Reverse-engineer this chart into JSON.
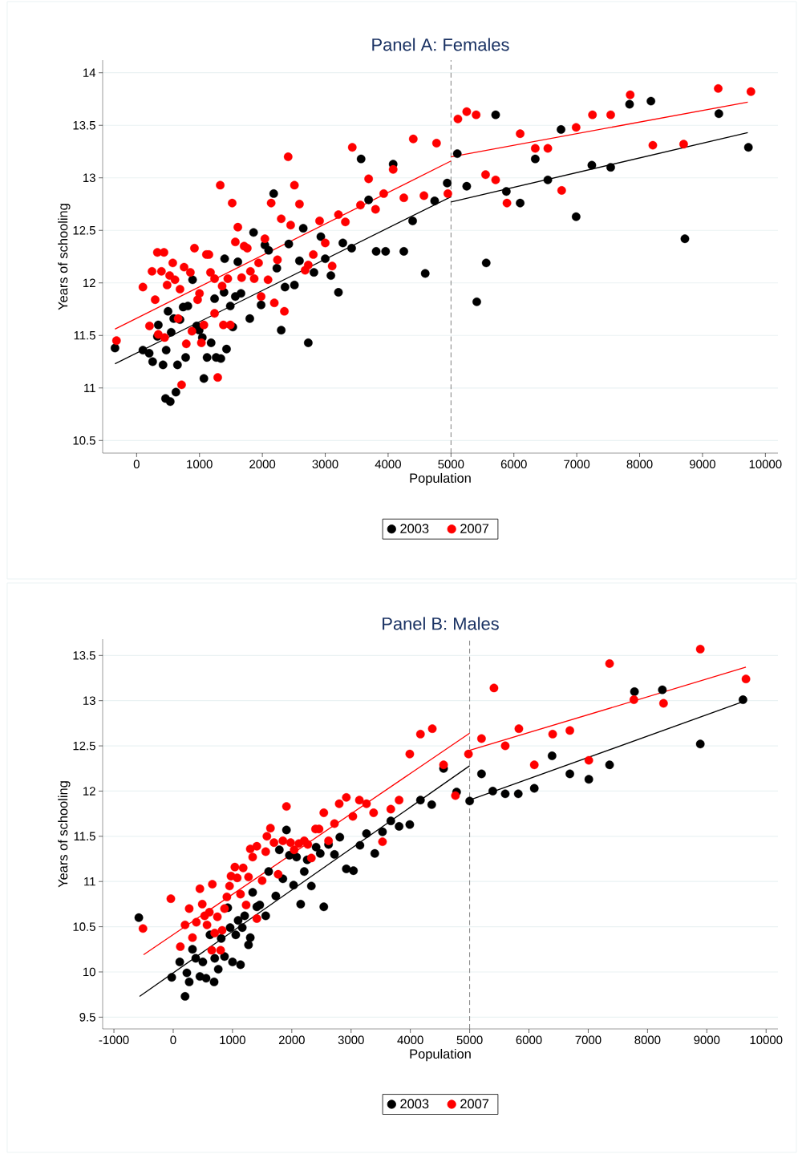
{
  "chart_data": [
    {
      "type": "scatter",
      "title": "Panel A: Females",
      "xlabel": "Population",
      "ylabel": "Years of schooling",
      "xlim": [
        -540,
        10200
      ],
      "ylim": [
        10.38,
        14.12
      ],
      "xticks": [
        0,
        1000,
        2000,
        3000,
        4000,
        5000,
        6000,
        7000,
        8000,
        9000,
        10000
      ],
      "yticks": [
        10.5,
        11,
        11.5,
        12,
        12.5,
        13,
        13.5,
        14
      ],
      "grid": "y",
      "legend": "bottom",
      "marker": "circle",
      "ref_lines": [
        {
          "axis": "x",
          "value": 5000,
          "color": "#808080",
          "line_style": "dashed"
        }
      ],
      "series": [
        {
          "name": "2003",
          "color": "#000000",
          "x": [
            -344,
            100,
            200,
            255,
            330,
            345,
            420,
            470,
            460,
            535,
            500,
            550,
            590,
            625,
            650,
            690,
            740,
            780,
            815,
            890,
            955,
            995,
            1045,
            1070,
            1120,
            1185,
            1240,
            1265,
            1340,
            1390,
            1430,
            1400,
            1490,
            1530,
            1570,
            1610,
            1660,
            1800,
            1860,
            1980,
            2040,
            2100,
            2180,
            2230,
            2300,
            2360,
            2420,
            2510,
            2590,
            2650,
            2730,
            2820,
            2930,
            3000,
            3090,
            3210,
            3280,
            3420,
            3570,
            3690,
            3810,
            3960,
            4080,
            4250,
            4390,
            4590,
            4740,
            4940,
            5100,
            5710,
            5250,
            5880,
            6100,
            6340,
            6750,
            6540,
            6990,
            7240,
            7540,
            7840,
            8180,
            9260,
            9730,
            8720,
            5560,
            5410
          ],
          "values": [
            11.38,
            11.36,
            11.33,
            11.25,
            11.49,
            11.6,
            11.22,
            11.36,
            10.9,
            10.87,
            11.73,
            11.53,
            11.66,
            10.96,
            11.22,
            11.65,
            11.77,
            11.29,
            11.78,
            12.03,
            11.59,
            11.55,
            11.48,
            11.09,
            11.29,
            11.43,
            11.85,
            11.29,
            11.28,
            11.91,
            11.37,
            12.23,
            11.78,
            11.58,
            11.87,
            12.2,
            11.9,
            11.66,
            12.48,
            11.79,
            12.36,
            12.31,
            12.85,
            12.14,
            11.55,
            11.96,
            12.37,
            11.98,
            12.21,
            12.52,
            11.43,
            12.1,
            12.44,
            12.23,
            12.07,
            11.91,
            12.38,
            12.33,
            13.18,
            12.79,
            12.3,
            12.3,
            13.13,
            12.3,
            12.59,
            12.09,
            12.78,
            12.95,
            13.23,
            13.6,
            12.92,
            12.87,
            12.76,
            13.18,
            13.46,
            12.98,
            12.63,
            13.12,
            13.1,
            13.7,
            13.73,
            13.61,
            13.29,
            12.42,
            12.19,
            11.82
          ]
        },
        {
          "name": "2007",
          "color": "#ff0000",
          "x": [
            -320,
            100,
            205,
            295,
            245,
            330,
            435,
            395,
            345,
            445,
            485,
            525,
            575,
            610,
            660,
            690,
            715,
            755,
            790,
            855,
            880,
            920,
            970,
            1000,
            1030,
            1070,
            1110,
            1150,
            1175,
            1240,
            1290,
            1240,
            1330,
            1360,
            1380,
            1450,
            1490,
            1520,
            1610,
            1570,
            1670,
            1710,
            1760,
            1810,
            1870,
            1940,
            1980,
            2040,
            2090,
            2140,
            2190,
            2240,
            2300,
            2350,
            2410,
            2450,
            2510,
            2590,
            2680,
            2730,
            2810,
            2910,
            3000,
            3110,
            3210,
            3320,
            3430,
            3560,
            3690,
            3800,
            3930,
            4080,
            4250,
            4400,
            4570,
            4770,
            4950,
            5110,
            5250,
            5400,
            5550,
            5710,
            5890,
            6100,
            6340,
            6540,
            6760,
            6990,
            7250,
            7540,
            7850,
            8210,
            8700,
            9250,
            9770
          ],
          "values": [
            11.45,
            11.96,
            11.59,
            11.84,
            12.11,
            12.29,
            12.29,
            12.11,
            11.51,
            11.48,
            11.98,
            12.07,
            12.19,
            12.03,
            11.66,
            11.94,
            11.03,
            12.15,
            11.42,
            12.1,
            11.54,
            12.33,
            11.84,
            11.9,
            11.43,
            11.6,
            12.27,
            12.27,
            12.1,
            12.04,
            11.1,
            11.71,
            12.93,
            11.97,
            11.6,
            12.04,
            11.6,
            12.76,
            12.53,
            12.39,
            12.05,
            12.35,
            12.33,
            12.11,
            12.04,
            12.19,
            11.87,
            12.42,
            12.03,
            12.76,
            11.81,
            12.22,
            12.61,
            11.73,
            13.2,
            12.55,
            12.93,
            12.75,
            12.12,
            12.17,
            12.27,
            12.59,
            12.38,
            12.16,
            12.65,
            12.58,
            13.29,
            12.74,
            12.99,
            12.7,
            12.85,
            13.08,
            12.81,
            13.37,
            12.83,
            13.33,
            12.85,
            13.56,
            13.63,
            13.6,
            13.03,
            12.98,
            12.76,
            13.42,
            13.28,
            13.28,
            12.88,
            13.48,
            13.6,
            13.6,
            13.79,
            13.31,
            13.32,
            13.85,
            13.82
          ]
        },
        {
          "type": "line",
          "marker": "none",
          "color": "#000000",
          "x": [
            -344,
            5000
          ],
          "values": [
            11.23,
            12.82
          ]
        },
        {
          "type": "line",
          "marker": "none",
          "color": "#000000",
          "x": [
            5000,
            9720
          ],
          "values": [
            12.77,
            13.43
          ]
        },
        {
          "type": "line",
          "marker": "none",
          "color": "#ff0000",
          "x": [
            -344,
            5000
          ],
          "values": [
            11.56,
            13.16
          ]
        },
        {
          "type": "line",
          "marker": "none",
          "color": "#ff0000",
          "x": [
            5000,
            9720
          ],
          "values": [
            13.2,
            13.72
          ]
        }
      ]
    },
    {
      "type": "scatter",
      "title": "Panel B: Males",
      "xlabel": "Population",
      "ylabel": "Years of schooling",
      "xlim": [
        -1190,
        10200
      ],
      "ylim": [
        9.37,
        13.68
      ],
      "xticks": [
        -1000,
        0,
        1000,
        2000,
        3000,
        4000,
        5000,
        6000,
        7000,
        8000,
        9000,
        10000
      ],
      "yticks": [
        9.5,
        10,
        10.5,
        11,
        11.5,
        12,
        12.5,
        13,
        13.5
      ],
      "grid": "y",
      "legend": "bottom",
      "marker": "circle",
      "ref_lines": [
        {
          "axis": "x",
          "value": 5000,
          "color": "#808080",
          "line_style": "dashed"
        }
      ],
      "series": [
        {
          "name": "2003",
          "color": "#000000",
          "x": [
            -580,
            -25,
            110,
            200,
            230,
            270,
            325,
            380,
            450,
            500,
            555,
            620,
            690,
            700,
            760,
            810,
            865,
            920,
            960,
            1000,
            1055,
            1135,
            1095,
            1165,
            1205,
            1270,
            1300,
            1340,
            1410,
            1460,
            1560,
            1610,
            1730,
            1790,
            1850,
            1910,
            1960,
            2030,
            2080,
            2150,
            2210,
            2260,
            2330,
            2410,
            2480,
            2540,
            2620,
            2720,
            2810,
            2920,
            3040,
            3150,
            3260,
            3400,
            3530,
            3670,
            3810,
            3990,
            4170,
            4360,
            4560,
            4780,
            5000,
            5200,
            5390,
            5600,
            5820,
            6090,
            6390,
            6690,
            7010,
            7360,
            7780,
            8250,
            8890,
            9610
          ],
          "values": [
            10.6,
            9.94,
            10.11,
            9.73,
            9.99,
            9.89,
            10.25,
            10.15,
            9.95,
            10.11,
            9.93,
            10.41,
            9.89,
            10.15,
            10.03,
            10.37,
            10.17,
            10.71,
            10.49,
            10.11,
            10.41,
            10.08,
            10.57,
            10.49,
            10.62,
            10.3,
            10.38,
            10.88,
            10.72,
            10.74,
            10.62,
            11.11,
            10.84,
            11.35,
            11.03,
            11.57,
            11.29,
            10.96,
            11.27,
            10.75,
            11.11,
            11.24,
            10.95,
            11.38,
            11.31,
            10.72,
            11.41,
            11.3,
            11.49,
            11.14,
            11.12,
            11.4,
            11.53,
            11.31,
            11.55,
            11.67,
            11.61,
            11.63,
            11.9,
            11.85,
            12.25,
            11.99,
            11.89,
            12.19,
            12.0,
            11.97,
            11.97,
            12.03,
            12.39,
            12.19,
            12.13,
            12.29,
            13.1,
            13.12,
            12.52,
            13.01
          ]
        },
        {
          "name": "2007",
          "color": "#ff0000",
          "x": [
            -510,
            -40,
            120,
            200,
            270,
            325,
            390,
            450,
            490,
            530,
            570,
            610,
            650,
            660,
            700,
            745,
            800,
            825,
            865,
            905,
            950,
            975,
            1040,
            1080,
            1135,
            1180,
            1230,
            1270,
            1340,
            1410,
            1300,
            1410,
            1500,
            1560,
            1580,
            1640,
            1700,
            1770,
            1850,
            1910,
            1980,
            2040,
            2120,
            2210,
            2270,
            2330,
            2400,
            2460,
            2540,
            2620,
            2720,
            2800,
            2920,
            3030,
            3140,
            3260,
            3380,
            3530,
            3670,
            3810,
            3990,
            4170,
            4370,
            4560,
            4760,
            4980,
            5200,
            5410,
            5600,
            5830,
            6090,
            6400,
            6690,
            7010,
            7360,
            7770,
            8270,
            8890,
            9660
          ],
          "values": [
            10.48,
            10.81,
            10.28,
            10.52,
            10.7,
            10.38,
            10.55,
            10.92,
            10.75,
            10.62,
            10.52,
            10.66,
            10.24,
            10.97,
            10.43,
            10.61,
            10.24,
            10.46,
            10.7,
            10.83,
            10.95,
            11.06,
            11.16,
            11.04,
            10.86,
            11.15,
            10.74,
            11.05,
            11.27,
            10.59,
            11.36,
            11.39,
            11.01,
            11.33,
            11.5,
            11.59,
            11.43,
            11.08,
            11.45,
            11.83,
            11.43,
            11.35,
            11.42,
            11.45,
            11.41,
            11.26,
            11.58,
            11.58,
            11.76,
            11.45,
            11.64,
            11.86,
            11.93,
            11.72,
            11.9,
            11.86,
            11.76,
            11.44,
            11.8,
            11.9,
            12.41,
            12.63,
            12.69,
            12.29,
            11.95,
            12.41,
            12.58,
            13.14,
            12.5,
            12.69,
            12.29,
            12.63,
            12.67,
            12.34,
            13.41,
            13.01,
            12.97,
            13.57,
            13.24
          ]
        },
        {
          "type": "line",
          "marker": "none",
          "color": "#000000",
          "x": [
            -568,
            5000
          ],
          "values": [
            9.73,
            12.28
          ]
        },
        {
          "type": "line",
          "marker": "none",
          "color": "#000000",
          "x": [
            5000,
            9660
          ],
          "values": [
            11.9,
            13.0
          ]
        },
        {
          "type": "line",
          "marker": "none",
          "color": "#ff0000",
          "x": [
            -500,
            5000
          ],
          "values": [
            10.19,
            12.64
          ]
        },
        {
          "type": "line",
          "marker": "none",
          "color": "#ff0000",
          "x": [
            5000,
            9660
          ],
          "values": [
            12.45,
            13.37
          ]
        }
      ]
    }
  ]
}
